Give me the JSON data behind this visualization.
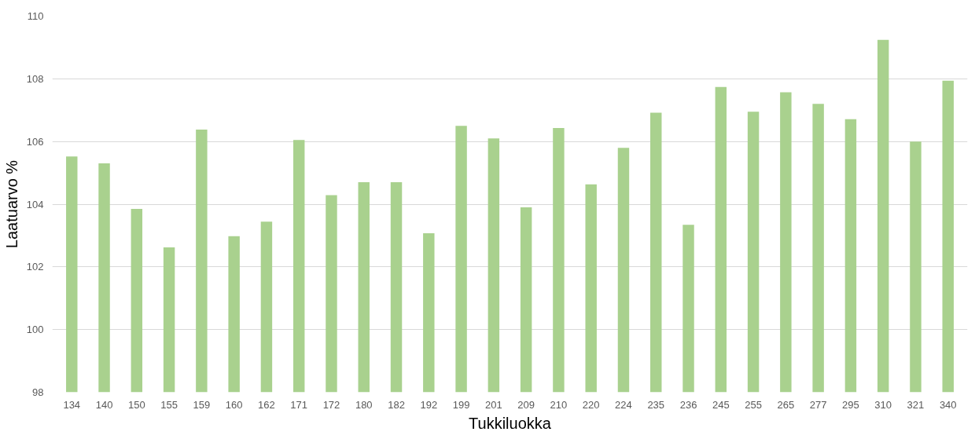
{
  "chart_data": {
    "type": "bar",
    "xlabel": "Tukkiluokka",
    "ylabel": "Laatuarvo %",
    "categories": [
      "134",
      "140",
      "150",
      "155",
      "159",
      "160",
      "162",
      "171",
      "172",
      "180",
      "182",
      "192",
      "199",
      "201",
      "209",
      "210",
      "220",
      "224",
      "235",
      "236",
      "245",
      "255",
      "265",
      "277",
      "295",
      "310",
      "321",
      "340"
    ],
    "values": [
      105.52,
      105.3,
      103.85,
      102.62,
      106.38,
      102.98,
      103.44,
      106.05,
      104.29,
      104.7,
      104.7,
      103.07,
      106.5,
      106.1,
      103.9,
      106.43,
      104.63,
      105.8,
      106.92,
      103.34,
      107.74,
      106.95,
      107.57,
      107.2,
      106.71,
      109.24,
      106.0,
      107.94
    ],
    "color": "#a9d18e",
    "ylim": [
      98,
      110
    ],
    "yticks": [
      98,
      100,
      102,
      104,
      106,
      108,
      110
    ],
    "grid": "y"
  }
}
